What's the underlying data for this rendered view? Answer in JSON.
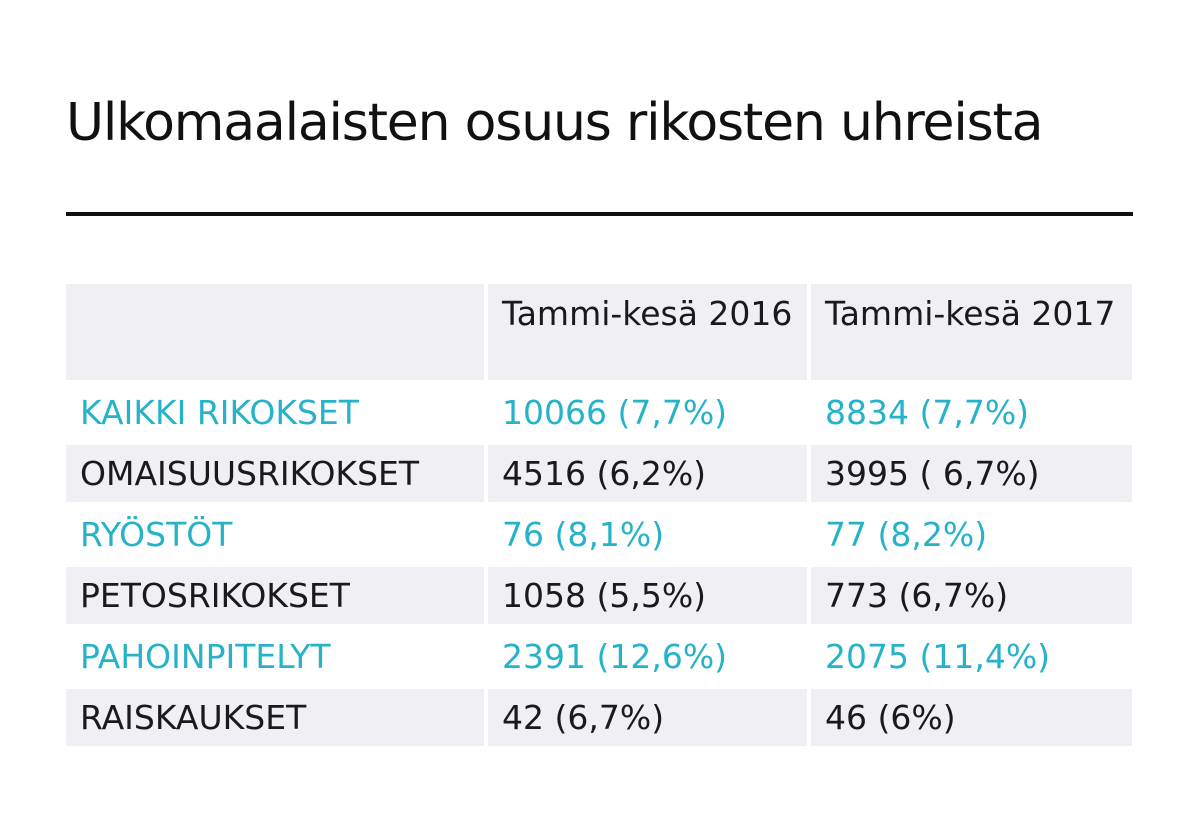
{
  "title": "Ulkomaalaisten osuus rikosten uhreista",
  "colors": {
    "accent": "#26b3c9",
    "text": "#1a1a1a",
    "row_shade": "#f0f0f4",
    "rule": "#111111"
  },
  "chart_data": {
    "type": "table",
    "title": "Ulkomaalaisten osuus rikosten uhreista",
    "columns": [
      "",
      "Tammi-kesä 2016",
      "Tammi-kesä 2017"
    ],
    "rows": [
      {
        "label": "KAIKKI RIKOKSET",
        "y2016": "10066 (7,7%)",
        "y2017": "8834 (7,7%)",
        "highlight": true
      },
      {
        "label": "OMAISUUSRIKOKSET",
        "y2016": "4516 (6,2%)",
        "y2017": "3995 ( 6,7%)",
        "highlight": false
      },
      {
        "label": "RYÖSTÖT",
        "y2016": "76 (8,1%)",
        "y2017": "77 (8,2%)",
        "highlight": true
      },
      {
        "label": "PETOSRIKOKSET",
        "y2016": "1058 (5,5%)",
        "y2017": "773 (6,7%)",
        "highlight": false
      },
      {
        "label": "PAHOINPITELYT",
        "y2016": "2391 (12,6%)",
        "y2017": "2075 (11,4%)",
        "highlight": true
      },
      {
        "label": "RAISKAUKSET",
        "y2016": "42 (6,7%)",
        "y2017": "46 (6%)",
        "highlight": false
      }
    ]
  }
}
